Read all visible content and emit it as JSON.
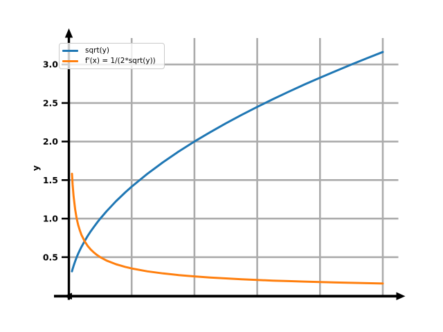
{
  "chart_data": {
    "type": "line",
    "title": "",
    "xlabel": "",
    "ylabel": "y",
    "grid": true,
    "legend_position": "upper left",
    "xlim": [
      -0.5,
      10.7
    ],
    "ylim": [
      0,
      3.4
    ],
    "x_gridlines": [
      2,
      4,
      6,
      8,
      10
    ],
    "yticks": [
      0.5,
      1.0,
      1.5,
      2.0,
      2.5,
      3.0
    ],
    "x": [
      0.1,
      0.12,
      0.15,
      0.2,
      0.25,
      0.3,
      0.35,
      0.4,
      0.5,
      0.6,
      0.7,
      0.8,
      0.9,
      1.0,
      1.2,
      1.5,
      1.8,
      2.0,
      2.5,
      3.0,
      3.5,
      4.0,
      4.5,
      5.0,
      5.5,
      6.0,
      6.5,
      7.0,
      7.5,
      8.0,
      8.5,
      9.0,
      9.5,
      10.0
    ],
    "series": [
      {
        "name": "sqrt(y)",
        "color": "#1f77b4",
        "values": [
          0.316,
          0.346,
          0.387,
          0.447,
          0.5,
          0.548,
          0.592,
          0.632,
          0.707,
          0.775,
          0.837,
          0.894,
          0.949,
          1.0,
          1.095,
          1.225,
          1.342,
          1.414,
          1.581,
          1.732,
          1.871,
          2.0,
          2.121,
          2.236,
          2.345,
          2.449,
          2.55,
          2.646,
          2.739,
          2.828,
          2.915,
          3.0,
          3.082,
          3.162
        ]
      },
      {
        "name": "f'(x) = 1/(2*sqrt(y))",
        "color": "#ff7f0e",
        "values": [
          1.581,
          1.443,
          1.291,
          1.118,
          1.0,
          0.913,
          0.845,
          0.791,
          0.707,
          0.645,
          0.598,
          0.559,
          0.527,
          0.5,
          0.456,
          0.408,
          0.373,
          0.354,
          0.316,
          0.289,
          0.267,
          0.25,
          0.236,
          0.224,
          0.213,
          0.204,
          0.196,
          0.189,
          0.183,
          0.177,
          0.171,
          0.167,
          0.162,
          0.158
        ]
      }
    ],
    "colors": {
      "grid": "#ababab",
      "axis": "#000000",
      "background": "#ffffff",
      "legend_border": "#c9c9c9"
    }
  }
}
